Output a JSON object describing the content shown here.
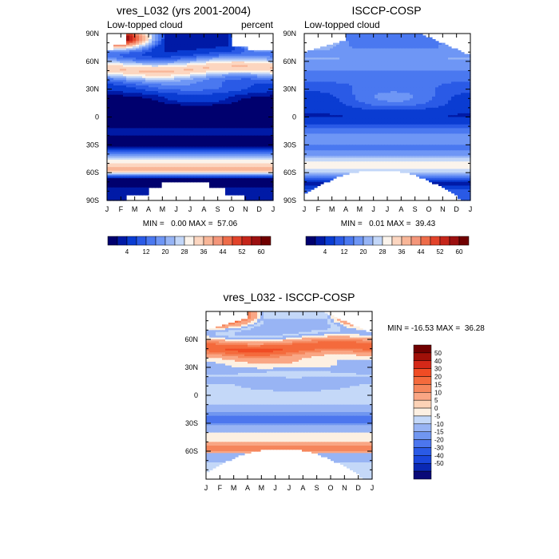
{
  "chart_data": [
    {
      "type": "heatmap",
      "title": "vres_L032 (yrs 2001-2004)",
      "left_label": "Low-topped cloud",
      "right_label": "percent",
      "x_ticks": [
        "J",
        "F",
        "M",
        "A",
        "M",
        "J",
        "J",
        "A",
        "S",
        "O",
        "N",
        "D",
        "J"
      ],
      "y_ticks": [
        "90N",
        "60N",
        "30N",
        "0",
        "30S",
        "60S",
        "90S"
      ],
      "stats": "MIN =   0.00 MAX =  57.06",
      "colorbar_labels": [
        "4",
        "12",
        "20",
        "28",
        "36",
        "44",
        "52",
        "60"
      ],
      "zlim": [
        0,
        60
      ],
      "min": 0.0,
      "max": 57.06
    },
    {
      "type": "heatmap",
      "title": "ISCCP-COSP",
      "left_label": "Low-topped cloud",
      "x_ticks": [
        "J",
        "F",
        "M",
        "A",
        "M",
        "J",
        "J",
        "A",
        "S",
        "O",
        "N",
        "D",
        "J"
      ],
      "y_ticks": [
        "90N",
        "60N",
        "30N",
        "0",
        "30S",
        "60S",
        "90S"
      ],
      "stats": "MIN =   0.01 MAX =  39.43",
      "colorbar_labels": [
        "4",
        "12",
        "20",
        "28",
        "36",
        "44",
        "52",
        "60"
      ],
      "zlim": [
        0,
        60
      ],
      "min": 0.01,
      "max": 39.43
    },
    {
      "type": "heatmap",
      "title": "vres_L032 - ISCCP-COSP",
      "x_ticks": [
        "J",
        "F",
        "M",
        "A",
        "M",
        "J",
        "J",
        "A",
        "S",
        "O",
        "N",
        "D",
        "J"
      ],
      "y_ticks": [
        "60N",
        "30N",
        "0",
        "30S",
        "60S"
      ],
      "stats": "MIN = -16.53 MAX =  36.28",
      "colorbar_labels": [
        "50",
        "40",
        "30",
        "20",
        "15",
        "10",
        "5",
        "0",
        "-5",
        "-10",
        "-15",
        "-20",
        "-30",
        "-40",
        "-50"
      ],
      "zlim": [
        -50,
        50
      ],
      "min": -16.53,
      "max": 36.28
    }
  ],
  "colors": {
    "seq": [
      "#00006e",
      "#001aa6",
      "#0a3cd2",
      "#2a5ae6",
      "#4a78f0",
      "#6e96f5",
      "#96b4f5",
      "#c3d7f8",
      "#fbf4ec",
      "#fcd6c0",
      "#f8b698",
      "#f4967a",
      "#ee6c4a",
      "#e2432a",
      "#c5251a",
      "#9c1010",
      "#700000"
    ],
    "diff": [
      "#0a0a78",
      "#0a28b4",
      "#1a46dc",
      "#2a5ae6",
      "#4c76ee",
      "#7096f0",
      "#98b4f4",
      "#c4d8f8",
      "#fdf0e2",
      "#fcd2b6",
      "#f9a684",
      "#f5865c",
      "#f46a3c",
      "#f04c24",
      "#d42818",
      "#a01008",
      "#700000"
    ]
  }
}
